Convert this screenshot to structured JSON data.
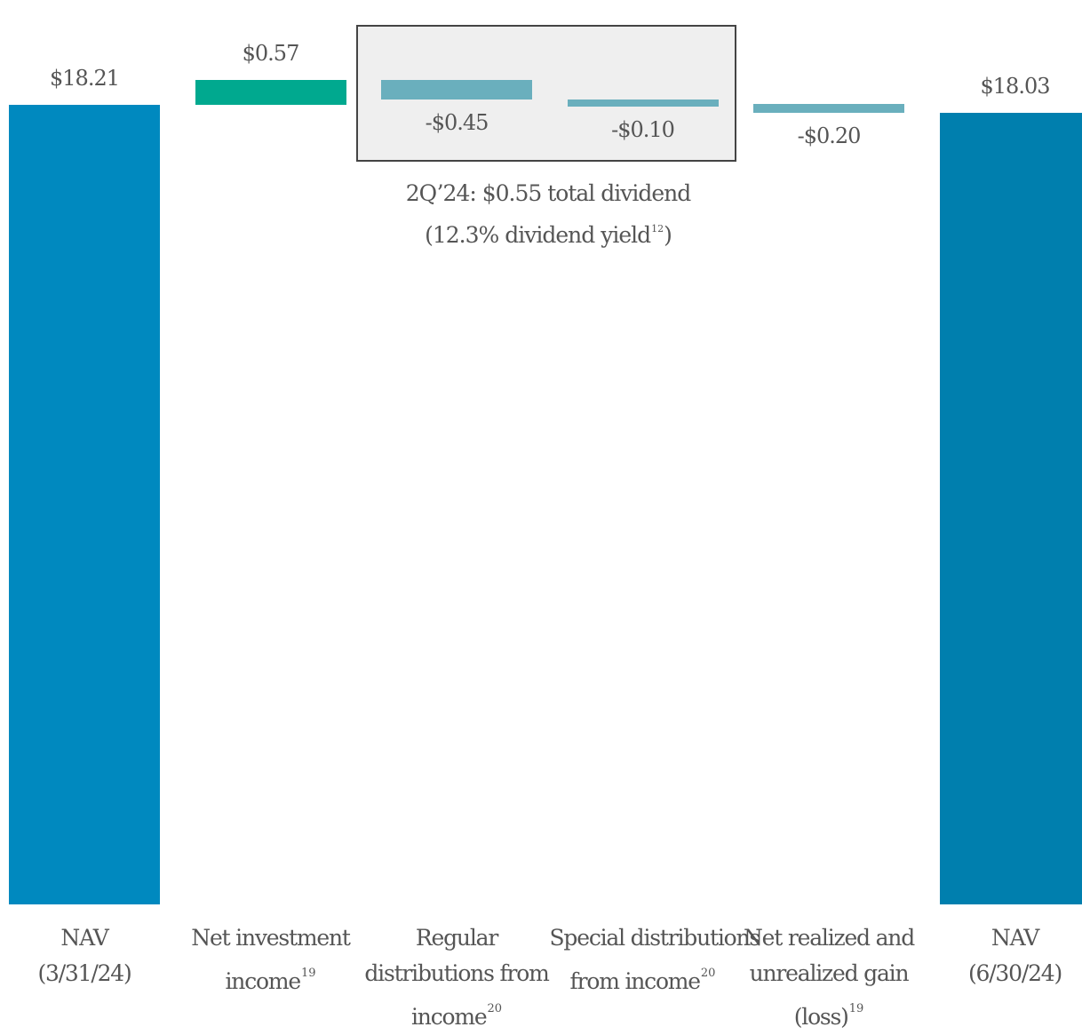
{
  "chart_data": {
    "type": "bar",
    "subtype": "waterfall",
    "categories": [
      {
        "lines": [
          "NAV",
          "(3/31/24)"
        ],
        "footnote": "",
        "footnote_line": -1
      },
      {
        "lines": [
          "Net investment",
          "income"
        ],
        "footnote": "19",
        "footnote_line": 1
      },
      {
        "lines": [
          "Regular",
          "distributions from",
          "income"
        ],
        "footnote": "20",
        "footnote_line": 2
      },
      {
        "lines": [
          "Special distributions",
          "from income"
        ],
        "footnote": "20",
        "footnote_line": 1
      },
      {
        "lines": [
          "Net realized and",
          "unrealized gain",
          "(loss)"
        ],
        "footnote": "19",
        "footnote_line": 2
      },
      {
        "lines": [
          "NAV",
          "(6/30/24)"
        ],
        "footnote": "",
        "footnote_line": -1
      }
    ],
    "values": [
      18.21,
      0.57,
      -0.45,
      -0.1,
      -0.2,
      18.03
    ],
    "kinds": [
      "total",
      "delta",
      "delta",
      "delta",
      "delta",
      "total"
    ],
    "value_labels": [
      "$18.21",
      "$0.57",
      "-$0.45",
      "-$0.10",
      "-$0.20",
      "$18.03"
    ],
    "colors": [
      "#0089bf",
      "#00a98f",
      "#6aafbd",
      "#6aafbd",
      "#6aafbd",
      "#007fae"
    ],
    "title": "",
    "xlabel": "",
    "ylabel": "",
    "axes_visible": false,
    "grid": false,
    "legend": "none",
    "annotation": {
      "line1": "2Q’24: $0.55 total dividend",
      "line2_prefix": "(12.3% dividend yield",
      "line2_sup": "12",
      "line2_suffix": ")",
      "covers_categories": [
        2,
        3
      ]
    }
  }
}
